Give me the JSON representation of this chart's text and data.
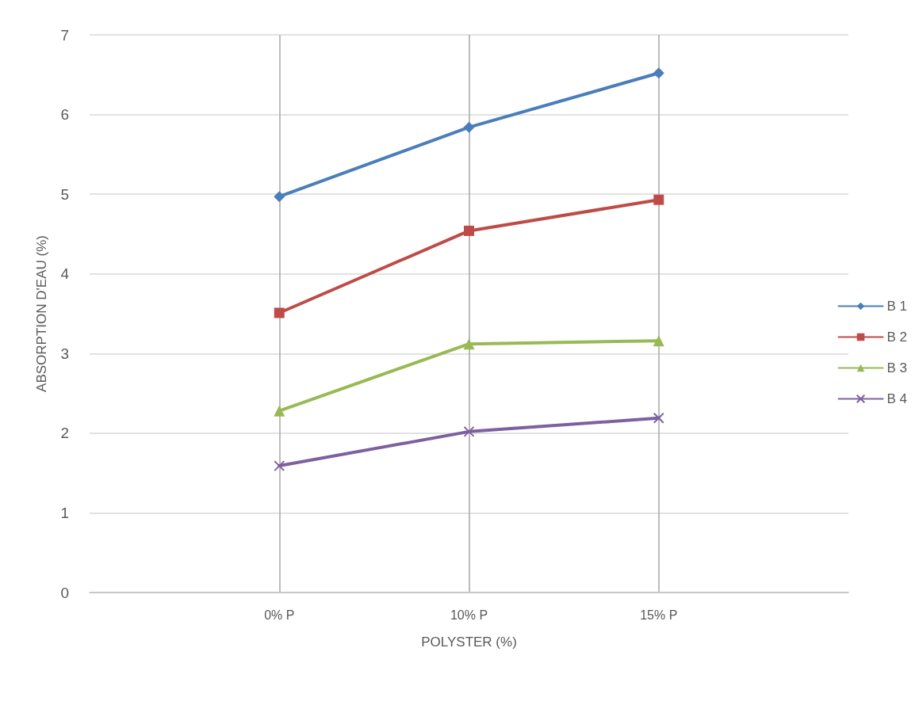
{
  "chart_data": {
    "type": "line",
    "xlabel": "POLYSTER (%)",
    "ylabel": "ABSORPTION D'EAU (%)",
    "categories": [
      "0% P",
      "10% P",
      "15% P"
    ],
    "series": [
      {
        "name": "B 1",
        "color": "#4a7ebb",
        "marker": "diamond",
        "values": [
          4.97,
          5.84,
          6.52
        ]
      },
      {
        "name": "B 2",
        "color": "#be4b48",
        "marker": "square",
        "values": [
          3.51,
          4.54,
          4.93
        ]
      },
      {
        "name": "B 3",
        "color": "#98b954",
        "marker": "triangle",
        "values": [
          2.28,
          3.12,
          3.16
        ]
      },
      {
        "name": "B 4",
        "color": "#7d60a0",
        "marker": "cross",
        "values": [
          1.59,
          2.02,
          2.19
        ]
      }
    ],
    "ylim": [
      0,
      7
    ],
    "yticks": [
      0,
      1,
      2,
      3,
      4,
      5,
      6,
      7
    ],
    "grid": true,
    "legend": "right",
    "line_style": "solid"
  }
}
